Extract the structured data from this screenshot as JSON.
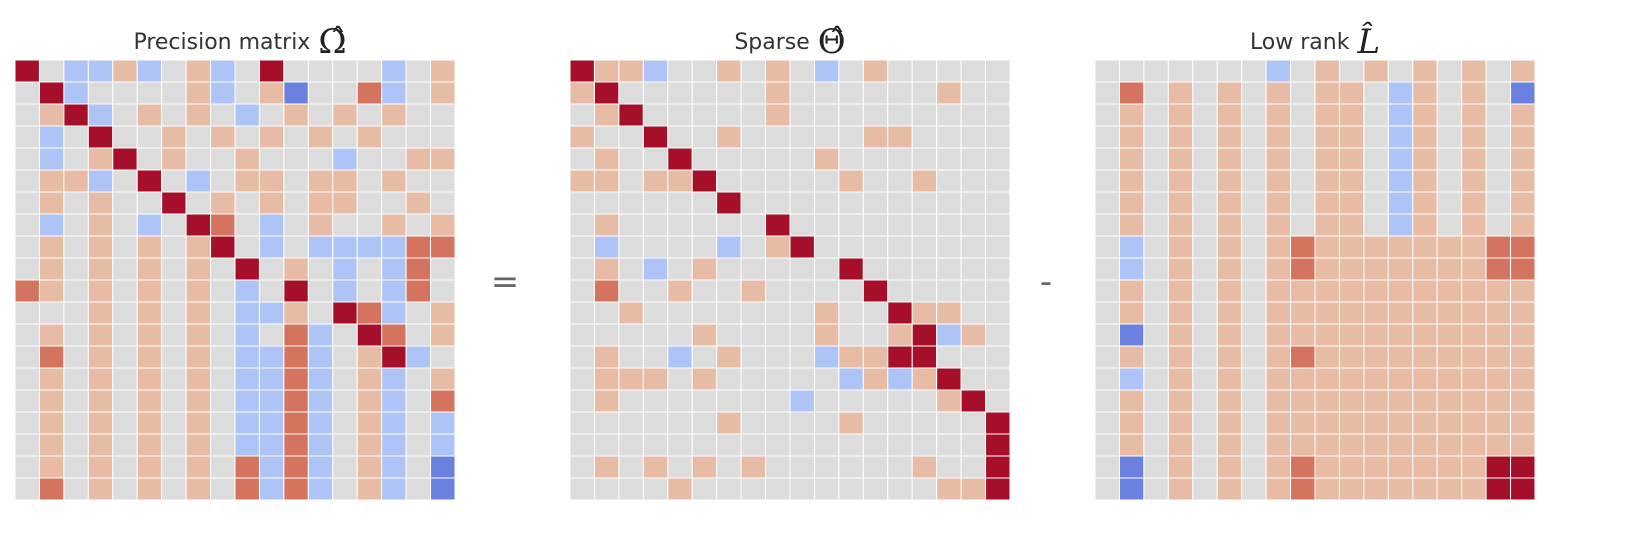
{
  "chart_data": [
    {
      "type": "heatmap",
      "title": "Precision matrix",
      "title_symbol": "Ω̂",
      "cmap": "coolwarm",
      "grid": true,
      "rows": [
        "H0BBAB0AB0H1111B0A",
        "0HB0000AB0AF00DB0A",
        "0AHB0A0A0B0A0A0A00",
        "0B0H00A0A0A0A0A000",
        "0B0AH0A00A000B00AA",
        "0AAB0H0B0AA0AA0A00",
        "0A0A00H0A0A0AA00A0",
        "0B0A0B0HD0B0A00A0A",
        "0A0A0A0AH0B0BBBBDD",
        "0A0A0A0A0H0A0B0BD0",
        "DA0A0A0A0B0H0B0BD0",
        "000A0A0A0BBA0HDB0A",
        "0A0A0A0A0B0DB0HD0A",
        "0D0A0A0A0BBDB0AHB0",
        "0A0A0A0A0BBDB0AB0A",
        "0A0A0A0A0BBDB0AB0D",
        "0A0A0A0A0BBDB0AB0B",
        "0A0A0A0A0BBDB0AB0B",
        "0A0A0A0A0DBDB0AB0F",
        "0D0A0A0A0DBDB0AB0F"
      ]
    },
    {
      "type": "heatmap",
      "title": "Sparse",
      "title_symbol": "Θ̂",
      "cmap": "coolwarm",
      "grid": true,
      "rows": [
        "HAAB00A0A0B0A00000",
        "AH000000A000000A00",
        "0AH00000A000000000",
        "A00H00A00000AA0000",
        "0A00H00000A0000000",
        "AA0AAH00000A00A000",
        "000000H00000000000",
        "0A000000H000000000",
        "0B0000B0AH00000000",
        "0A0B0A00000H000000",
        "0D00A00A0000H00000",
        "00A0000000A00HAA00",
        "00000A0000A00AHBA0",
        "0A00B0A000BAAHH000",
        "0AAA0A00000BABAH00",
        "0A0000000B00000AH0",
        "000000A0000A00000H",
        "00000000000000000H",
        "0A0A0A0A000000A00H",
        "0000A0000000000AAH"
      ]
    },
    {
      "type": "heatmap",
      "title": "Low rank",
      "title_symbol": "L̂",
      "cmap": "coolwarm",
      "grid": true,
      "rows": [
        "0000000B0A0A0A0A0A",
        "0D0A0A0A0AA0BA0A0F",
        "0A0A0A0A0AA0BA0A0A",
        "0A0A0A0A0AA0BA0A0A",
        "0A0A0A0A0AA0BA0A0A",
        "0A0A0A0A0AA0BA0A0A",
        "0A0A0A0A0AA0BA0A0A",
        "0A0A0A0A0AA0BA0A0A",
        "0B0A0A0ADAAAAAAADD",
        "0B0A0A0ADAAAAAAADD",
        "0A0A0A0AAAAAAAAAAA",
        "0A0A0A0AAAAAAAAAAA",
        "0F0A0A0AAAAAAAAAAA",
        "0A0A0A0ADAAAAAAAAA",
        "0B0A0A0AAAAAAAAAAA",
        "0A0A0A0AAAAAAAAAAA",
        "0A0A0A0AAAAAAAAAAA",
        "0A0A0A0AAAAAAAAAAA",
        "0F0A0A0ADAAAAAAAHH",
        "0F0A0A0ADAAAAAAAHH"
      ]
    }
  ],
  "operators": [
    "=",
    "-"
  ],
  "palette": {
    "0": "#dcdcdc",
    "A": "#e8bba4",
    "B": "#aec4f7",
    "D": "#d4735e",
    "F": "#6a81e0",
    "H": "#a50f2a"
  }
}
